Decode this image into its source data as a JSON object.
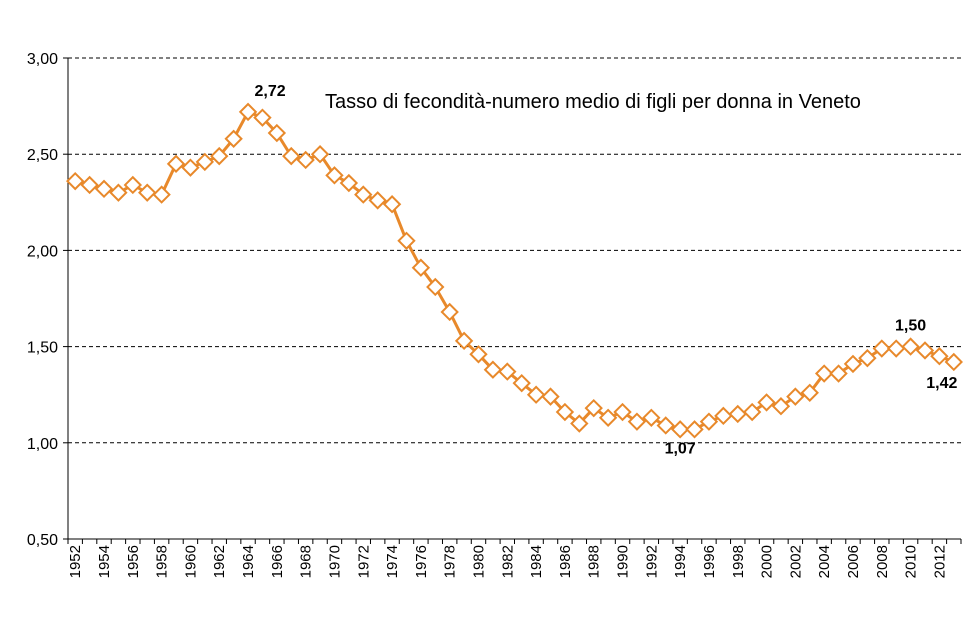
{
  "chart_data": {
    "type": "line",
    "title": "Tasso di fecondità-numero medio di figli per donna in Veneto",
    "xlabel": "",
    "ylabel": "",
    "ylim": [
      0.5,
      3.0
    ],
    "yticks": [
      "0,50",
      "1,00",
      "1,50",
      "2,00",
      "2,50",
      "3,00"
    ],
    "ytick_values": [
      0.5,
      1.0,
      1.5,
      2.0,
      2.5,
      3.0
    ],
    "grid": true,
    "line_color": "#E8892B",
    "x": [
      1952,
      1953,
      1954,
      1955,
      1956,
      1957,
      1958,
      1959,
      1960,
      1961,
      1962,
      1963,
      1964,
      1965,
      1966,
      1967,
      1968,
      1969,
      1970,
      1971,
      1972,
      1973,
      1974,
      1975,
      1976,
      1977,
      1978,
      1979,
      1980,
      1981,
      1982,
      1983,
      1984,
      1985,
      1986,
      1987,
      1988,
      1989,
      1990,
      1991,
      1992,
      1993,
      1994,
      1995,
      1996,
      1997,
      1998,
      1999,
      2000,
      2001,
      2002,
      2003,
      2004,
      2005,
      2006,
      2007,
      2008,
      2009,
      2010,
      2011,
      2012,
      2013
    ],
    "xtick_labels": [
      "1952",
      "1954",
      "1956",
      "1958",
      "1960",
      "1962",
      "1964",
      "1966",
      "1968",
      "1970",
      "1972",
      "1974",
      "1976",
      "1978",
      "1980",
      "1982",
      "1984",
      "1986",
      "1988",
      "1990",
      "1992",
      "1994",
      "1996",
      "1998",
      "2000",
      "2002",
      "2004",
      "2006",
      "2008",
      "2010",
      "2012"
    ],
    "series": [
      {
        "name": "",
        "values": [
          2.36,
          2.34,
          2.32,
          2.3,
          2.34,
          2.3,
          2.29,
          2.45,
          2.43,
          2.46,
          2.49,
          2.58,
          2.72,
          2.69,
          2.61,
          2.49,
          2.47,
          2.5,
          2.39,
          2.35,
          2.29,
          2.26,
          2.24,
          2.05,
          1.91,
          1.81,
          1.68,
          1.53,
          1.46,
          1.38,
          1.37,
          1.31,
          1.25,
          1.24,
          1.16,
          1.1,
          1.18,
          1.13,
          1.16,
          1.11,
          1.13,
          1.09,
          1.07,
          1.07,
          1.11,
          1.14,
          1.15,
          1.16,
          1.21,
          1.19,
          1.24,
          1.26,
          1.36,
          1.36,
          1.41,
          1.44,
          1.49,
          1.49,
          1.5,
          1.48,
          1.45,
          1.42
        ]
      }
    ],
    "annotations": [
      {
        "x": 1964,
        "text": "2,72"
      },
      {
        "x": 1994,
        "text": "1,07"
      },
      {
        "x": 2010,
        "text": "1,50"
      },
      {
        "x": 2013,
        "text": "1,42"
      }
    ]
  }
}
